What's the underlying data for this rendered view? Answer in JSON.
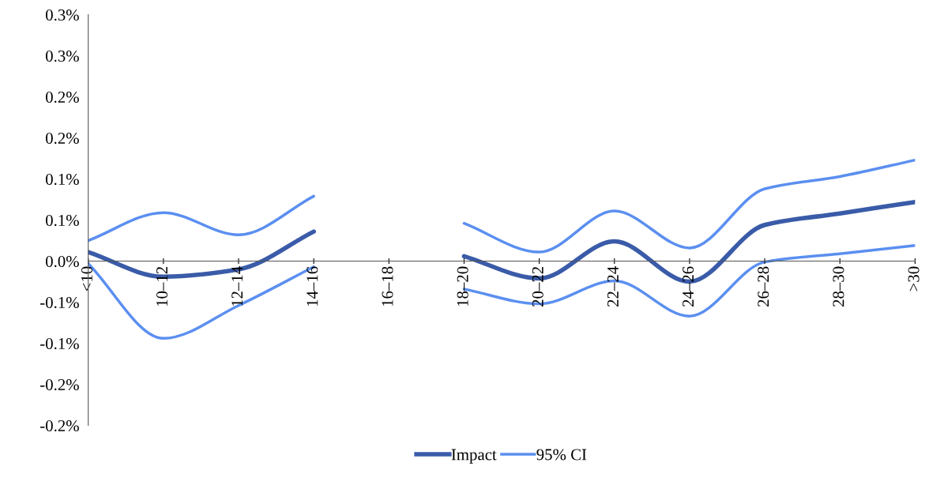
{
  "chart_data": {
    "type": "line",
    "categories": [
      "<10",
      "10–12",
      "12–14",
      "14–16",
      "16–18",
      "18–20",
      "20–22",
      "22–24",
      "24–26",
      "26–28",
      "28–30",
      ">30"
    ],
    "series": [
      {
        "name": "Impact",
        "color": "#3a5ba8",
        "values": [
          0.011,
          -0.019,
          -0.01,
          0.036,
          null,
          0.006,
          -0.021,
          0.024,
          -0.025,
          0.044,
          0.058,
          0.072
        ]
      },
      {
        "name": "95% CI",
        "color": "#5b8ff0",
        "values": [
          0.025,
          0.059,
          0.032,
          0.079,
          null,
          0.046,
          0.011,
          0.061,
          0.016,
          0.088,
          0.103,
          0.123
        ]
      },
      {
        "color": "#5b8ff0",
        "values": [
          -0.003,
          -0.094,
          -0.054,
          -0.007,
          null,
          -0.034,
          -0.052,
          -0.024,
          -0.067,
          -0.001,
          0.009,
          0.019
        ]
      }
    ],
    "ylim": [
      -0.2,
      0.3
    ],
    "yticks": [
      {
        "value": -0.2,
        "label": "-0.2%"
      },
      {
        "value": -0.15,
        "label": "-0.2%"
      },
      {
        "value": -0.1,
        "label": "-0.1%"
      },
      {
        "value": -0.05,
        "label": "-0.1%"
      },
      {
        "value": 0,
        "label": "0.0%"
      },
      {
        "value": 0.05,
        "label": "0.1%"
      },
      {
        "value": 0.1,
        "label": "0.1%"
      },
      {
        "value": 0.15,
        "label": "0.2%"
      },
      {
        "value": 0.2,
        "label": "0.2%"
      },
      {
        "value": 0.25,
        "label": "0.3%"
      },
      {
        "value": 0.3,
        "label": "0.3%"
      }
    ],
    "grid": false,
    "legend": "bottom",
    "marker": "none",
    "line_style": "solid"
  }
}
